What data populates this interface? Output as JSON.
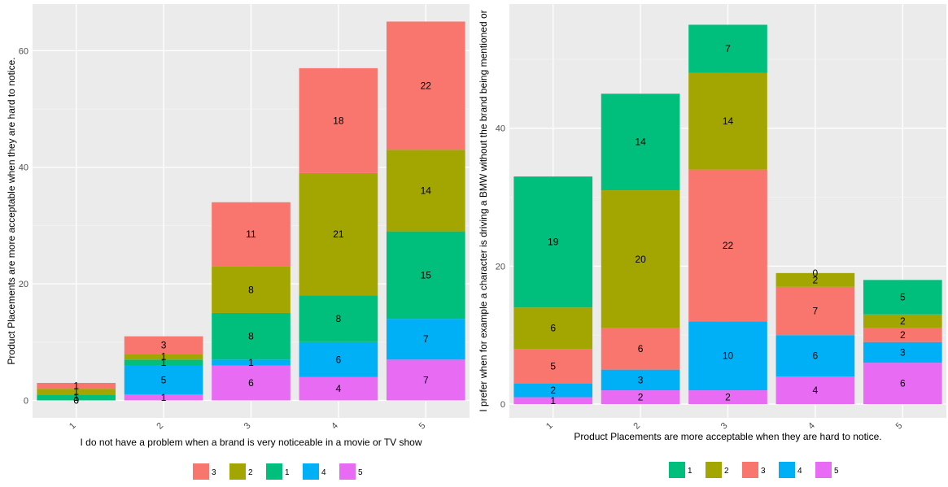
{
  "colors": {
    "panel_bg": "#ebebeb",
    "grid_major": "#ffffff",
    "grid_minor": "#f3f3f3",
    "series": {
      "1": "#00BF7D",
      "2": "#A3A500",
      "3": "#F8766D",
      "4": "#00B0F6",
      "5": "#E76BF3"
    }
  },
  "chart_data": [
    {
      "type": "bar",
      "stacked": true,
      "title": "",
      "xlabel": "I do not have a problem when a brand is very noticeable in a movie or TV show",
      "ylabel": "Product Placements are more acceptable when they are hard to notice.",
      "categories": [
        "1",
        "2",
        "3",
        "4",
        "5"
      ],
      "ylim": [
        -3,
        68
      ],
      "yticks": [
        0,
        20,
        40,
        60
      ],
      "stack_order_bottom_to_top": [
        "5",
        "4",
        "1",
        "2",
        "3"
      ],
      "series": [
        {
          "name": "5",
          "values": [
            0,
            1,
            6,
            4,
            7
          ]
        },
        {
          "name": "4",
          "values": [
            0,
            5,
            1,
            6,
            7
          ]
        },
        {
          "name": "1",
          "values": [
            1,
            1,
            8,
            8,
            15
          ]
        },
        {
          "name": "2",
          "values": [
            1,
            1,
            8,
            21,
            14
          ]
        },
        {
          "name": "3",
          "values": [
            1,
            3,
            11,
            18,
            22
          ]
        }
      ],
      "legend": {
        "position": "bottom",
        "items": [
          "3",
          "2",
          "1",
          "4",
          "5"
        ]
      }
    },
    {
      "type": "bar",
      "stacked": true,
      "title": "",
      "xlabel": "Product Placements are more acceptable when they are hard to notice.",
      "ylabel": "I prefer when for example a character is driving a BMW without the brand being mentioned or",
      "categories": [
        "1",
        "2",
        "3",
        "4",
        "5"
      ],
      "ylim": [
        -2,
        58
      ],
      "yticks": [
        0,
        20,
        40
      ],
      "stack_order_bottom_to_top": [
        "5",
        "4",
        "3",
        "2",
        "1"
      ],
      "series": [
        {
          "name": "5",
          "values": [
            1,
            2,
            2,
            4,
            6
          ]
        },
        {
          "name": "4",
          "values": [
            2,
            3,
            10,
            6,
            3
          ]
        },
        {
          "name": "3",
          "values": [
            5,
            6,
            22,
            7,
            2
          ]
        },
        {
          "name": "2",
          "values": [
            6,
            20,
            14,
            2,
            2
          ]
        },
        {
          "name": "1",
          "values": [
            19,
            14,
            7,
            0,
            5
          ]
        }
      ],
      "legend": {
        "position": "bottom",
        "items": [
          "1",
          "2",
          "3",
          "4",
          "5"
        ]
      }
    }
  ]
}
